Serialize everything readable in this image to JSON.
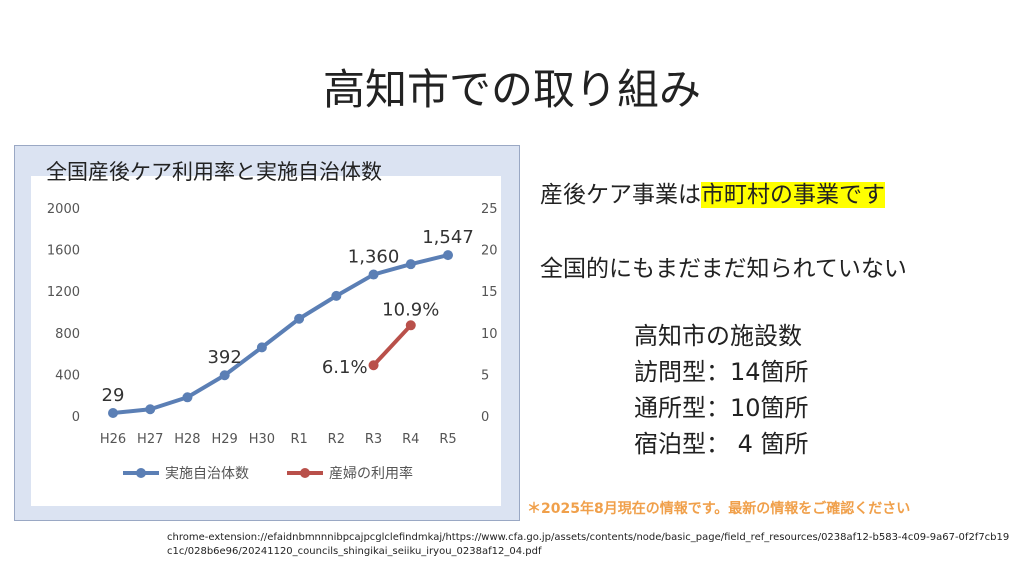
{
  "slide": {
    "title": "高知市での取り組み",
    "statement1_plain": "産後ケア事業は",
    "statement1_highlight": "市町村の事業です",
    "statement2": "全国的にもまだまだ知られていない",
    "facility_title": "高知市の施設数",
    "facility_lines": [
      "訪問型：14箇所",
      "通所型：10箇所",
      "宿泊型： 4 箇所"
    ],
    "note": "＊2025年8月現在の情報です。最新の情報をご確認ください",
    "source_url": "chrome-extension://efaidnbmnnnibpcajpcglclefindmkaj/https://www.cfa.go.jp/assets/contents/node/basic_page/field_ref_resources/0238af12-b583-4c09-9a67-0f2f7cb19c1c/028b6e96/20241120_councils_shingikai_seiiku_iryou_0238af12_04.pdf",
    "highlight_color": "#ffff00",
    "note_color": "#f0a04b"
  },
  "chart_data": {
    "type": "line",
    "title": "全国産後ケア利用率と実施自治体数",
    "categories": [
      "H26",
      "H27",
      "H28",
      "H29",
      "H30",
      "R1",
      "R2",
      "R3",
      "R4",
      "R5"
    ],
    "y_left_ticks": [
      "0",
      "400",
      "800",
      "1200",
      "1600",
      "2000"
    ],
    "y_left_range": [
      0,
      2000
    ],
    "y_right_ticks": [
      "0",
      "5",
      "10",
      "15",
      "20",
      "25"
    ],
    "y_right_range": [
      0,
      25
    ],
    "series": [
      {
        "name": "実施自治体数",
        "axis": "left",
        "color": "#5b7fb5",
        "values": [
          29,
          65,
          180,
          392,
          660,
          935,
          1155,
          1360,
          1460,
          1547
        ],
        "labels": {
          "0": "29",
          "3": "392",
          "7": "1,360",
          "9": "1,547"
        }
      },
      {
        "name": "産婦の利用率",
        "axis": "right",
        "color": "#b9504a",
        "values": [
          null,
          null,
          null,
          null,
          null,
          null,
          null,
          6.1,
          10.9,
          null
        ],
        "labels": {
          "7": "6.1%",
          "8": "10.9%"
        }
      }
    ],
    "grid": false,
    "legend": "bottom"
  }
}
